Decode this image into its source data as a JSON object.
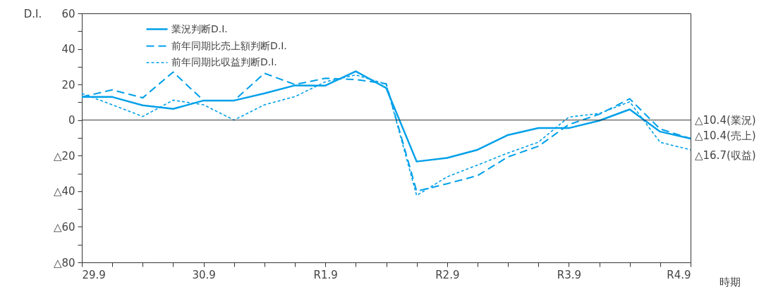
{
  "chart_data": {
    "type": "line",
    "ylabel": "D.I.",
    "xlabel": "時期",
    "categories": [
      "29.9",
      null,
      null,
      null,
      "30.9",
      null,
      null,
      null,
      "R1.9",
      null,
      null,
      null,
      "R2.9",
      null,
      null,
      null,
      "R3.9",
      null,
      null,
      null,
      "R4.9"
    ],
    "series": [
      {
        "name": "業況判断D.I.",
        "color": "#00a0e9",
        "line_style": "solid",
        "values": [
          13,
          13,
          8.3,
          6.3,
          11,
          11,
          15,
          19.5,
          19.4,
          27.4,
          18,
          -23.3,
          -21.3,
          -16.7,
          -8.4,
          -4.5,
          -4.5,
          -0.3,
          6,
          -6.5,
          -10.4
        ]
      },
      {
        "name": "前年同期比売上額判断D.I.",
        "color": "#00a0e9",
        "line_style": "dashed",
        "values": [
          13,
          17,
          12.5,
          27,
          11,
          11,
          26.3,
          20,
          23.5,
          22.8,
          20.4,
          -40,
          -35.8,
          -31.2,
          -20.7,
          -14.7,
          -2.5,
          3.3,
          12,
          -5,
          -10.4
        ]
      },
      {
        "name": "前年同期比収益判断D.I.",
        "color": "#00a0e9",
        "line_style": "dotted",
        "values": [
          15,
          8.6,
          2,
          11.2,
          8.6,
          0,
          8.6,
          13.2,
          21.5,
          25.4,
          20.2,
          -42.4,
          -31.9,
          -25.3,
          -18.5,
          -12.4,
          1.7,
          3.7,
          10.3,
          -12.5,
          -16.7
        ]
      }
    ],
    "ylim": [
      -80,
      60
    ],
    "yticks": [
      {
        "value": -80,
        "label": "△80"
      },
      {
        "value": -70,
        "label": null
      },
      {
        "value": -60,
        "label": "△60"
      },
      {
        "value": -50,
        "label": null
      },
      {
        "value": -40,
        "label": "△40"
      },
      {
        "value": -30,
        "label": null
      },
      {
        "value": -20,
        "label": "△20"
      },
      {
        "value": -10,
        "label": null
      },
      0,
      {
        "value": 10,
        "label": null
      },
      20,
      {
        "value": 30,
        "label": null
      },
      40,
      {
        "value": 50,
        "label": null
      },
      60
    ],
    "ref_lines": [
      {
        "axis": "y",
        "value": 0,
        "color": "#333333",
        "line_style": "solid"
      }
    ],
    "annotations": [
      "△10.4(業況)",
      "△10.4(売上)",
      "△16.7(収益)"
    ],
    "grid": false,
    "legend": "top",
    "marker": "none"
  }
}
